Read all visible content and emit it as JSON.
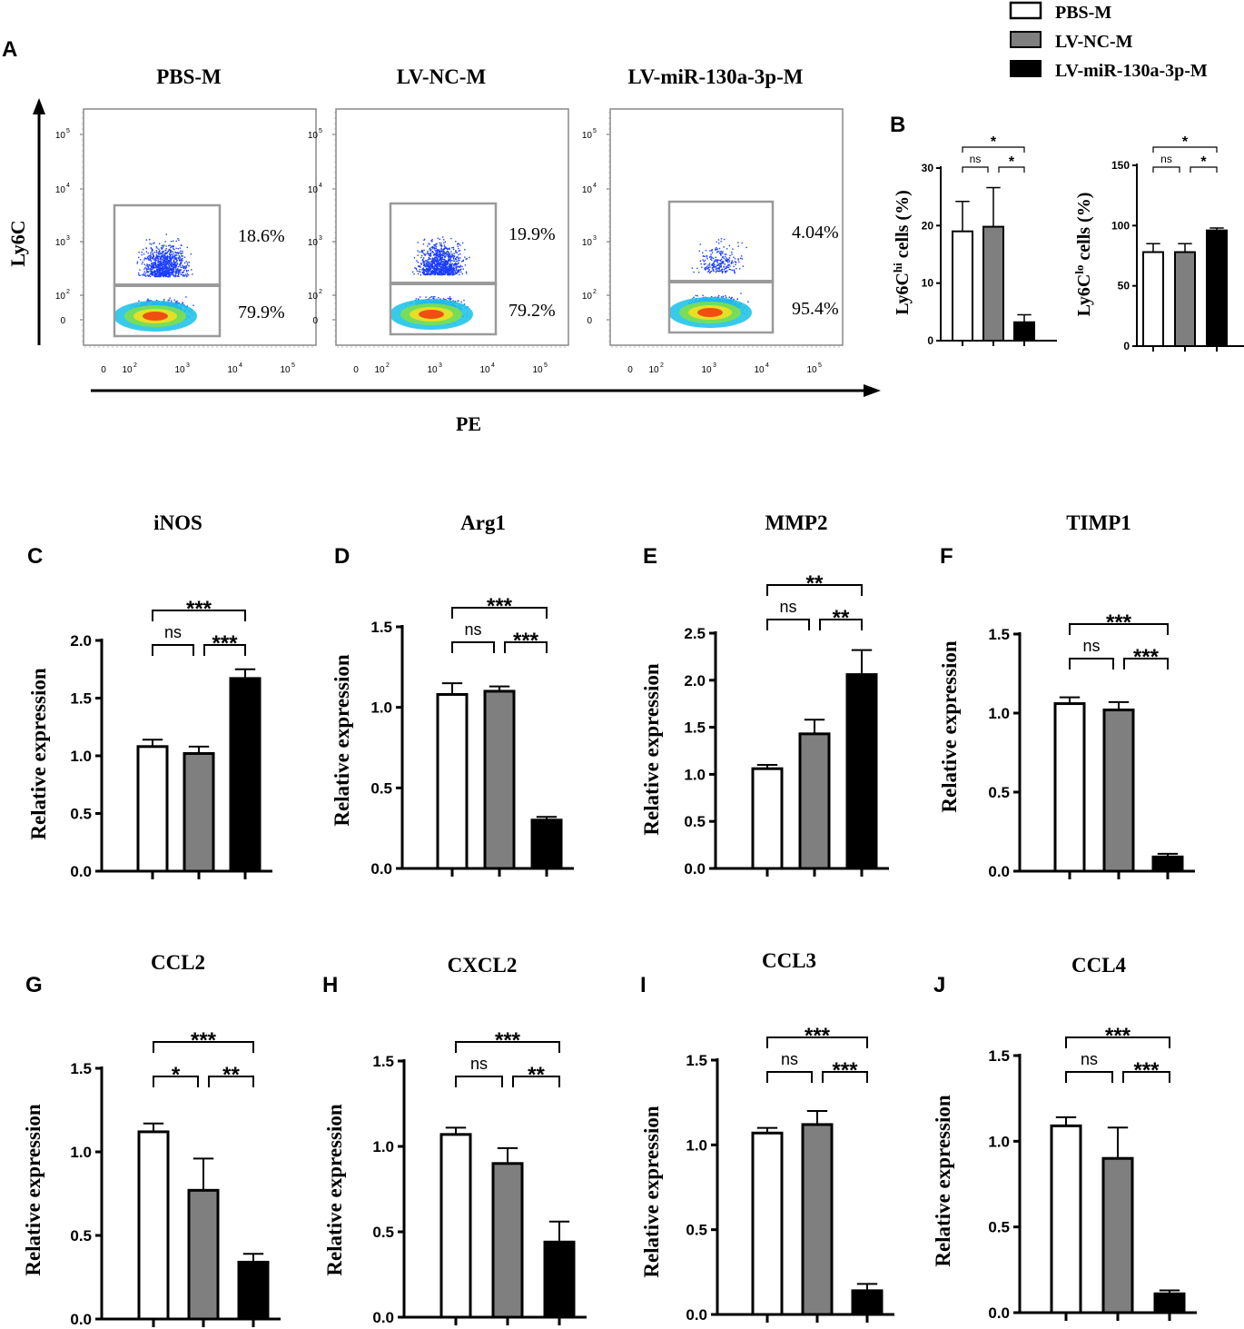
{
  "figure": {
    "legend": [
      {
        "label": "PBS-M",
        "color": "#ffffff"
      },
      {
        "label": "LV-NC-M",
        "color": "#7f7f7f"
      },
      {
        "label": "LV-miR-130a-3p-M",
        "color": "#000000"
      }
    ],
    "panel_a": {
      "letter": "A",
      "y_axis_label": "Ly6C",
      "x_axis_label": "PE",
      "plots": [
        {
          "title": "PBS-M",
          "upper_pct": "18.6%",
          "lower_pct": "79.9%"
        },
        {
          "title": "LV-NC-M",
          "upper_pct": "19.9%",
          "lower_pct": "79.2%"
        },
        {
          "title": "LV-miR-130a-3p-M",
          "upper_pct": "4.04%",
          "lower_pct": "95.4%"
        }
      ],
      "y_ticks": [
        "10",
        "10",
        "10",
        "10",
        "0"
      ],
      "y_tick_exponents": [
        "5",
        "4",
        "3",
        "2",
        ""
      ],
      "x_ticks": [
        "0",
        "10",
        "10",
        "10",
        "10"
      ],
      "x_tick_exponents": [
        "",
        "2",
        "3",
        "4",
        "5"
      ]
    },
    "colors": {
      "white_bar": "#ffffff",
      "gray_bar": "#7f7f7f",
      "black_bar": "#000000",
      "flow_dots": "#1a3cff"
    }
  },
  "chart_data": [
    {
      "panel": "B",
      "letter": "B",
      "type": "bar",
      "title": "",
      "ylabel_main": "Ly6C",
      "ylabel_sup": "hi",
      "ylabel_rest": " cells (%)",
      "categories": [
        "PBS-M",
        "LV-NC-M",
        "LV-miR-130a-3p-M"
      ],
      "values": [
        19.0,
        19.8,
        3.2
      ],
      "errors": [
        5.2,
        6.8,
        1.3
      ],
      "ylim": [
        0,
        30
      ],
      "ticks": [
        0,
        10,
        20,
        30
      ],
      "tick_labels": [
        "0",
        "10",
        "20",
        "30"
      ],
      "sig": [
        {
          "text": "ns",
          "from": 0,
          "to": 1,
          "level": 1
        },
        {
          "text": "*",
          "from": 1,
          "to": 2,
          "level": 1
        },
        {
          "text": "*",
          "from": 0,
          "to": 2,
          "level": 2
        }
      ]
    },
    {
      "panel": "B2",
      "letter": "",
      "type": "bar",
      "title": "",
      "ylabel_main": "Ly6C",
      "ylabel_sup": "lo",
      "ylabel_rest": " cells (%)",
      "categories": [
        "PBS-M",
        "LV-NC-M",
        "LV-miR-130a-3p-M"
      ],
      "values": [
        78,
        78,
        96
      ],
      "errors": [
        7,
        7,
        2
      ],
      "ylim": [
        0,
        150
      ],
      "ticks": [
        0,
        50,
        100,
        150
      ],
      "tick_labels": [
        "0",
        "50",
        "100",
        "150"
      ],
      "sig": [
        {
          "text": "ns",
          "from": 0,
          "to": 1,
          "level": 1
        },
        {
          "text": "*",
          "from": 1,
          "to": 2,
          "level": 1
        },
        {
          "text": "*",
          "from": 0,
          "to": 2,
          "level": 2
        }
      ]
    },
    {
      "panel": "C",
      "letter": "C",
      "type": "bar",
      "title": "iNOS",
      "ylabel_main": "Relative expression",
      "categories": [
        "PBS-M",
        "LV-NC-M",
        "LV-miR-130a-3p-M"
      ],
      "values": [
        1.08,
        1.02,
        1.67
      ],
      "errors": [
        0.06,
        0.06,
        0.08
      ],
      "ylim": [
        0,
        2.0
      ],
      "ticks": [
        0,
        0.5,
        1.0,
        1.5,
        2.0
      ],
      "tick_labels": [
        "0.0",
        "0.5",
        "1.0",
        "1.5",
        "2.0"
      ],
      "sig": [
        {
          "text": "ns",
          "from": 0,
          "to": 1,
          "level": 1
        },
        {
          "text": "***",
          "from": 1,
          "to": 2,
          "level": 1
        },
        {
          "text": "***",
          "from": 0,
          "to": 2,
          "level": 2
        }
      ]
    },
    {
      "panel": "D",
      "letter": "D",
      "type": "bar",
      "title": "Arg1",
      "ylabel_main": "Relative expression",
      "categories": [
        "PBS-M",
        "LV-NC-M",
        "LV-miR-130a-3p-M"
      ],
      "values": [
        1.08,
        1.1,
        0.3
      ],
      "errors": [
        0.07,
        0.03,
        0.02
      ],
      "ylim": [
        0,
        1.5
      ],
      "ticks": [
        0,
        0.5,
        1.0,
        1.5
      ],
      "tick_labels": [
        "0.0",
        "0.5",
        "1.0",
        "1.5"
      ],
      "sig": [
        {
          "text": "ns",
          "from": 0,
          "to": 1,
          "level": 1
        },
        {
          "text": "***",
          "from": 1,
          "to": 2,
          "level": 1
        },
        {
          "text": "***",
          "from": 0,
          "to": 2,
          "level": 2
        }
      ]
    },
    {
      "panel": "E",
      "letter": "E",
      "type": "bar",
      "title": "MMP2",
      "ylabel_main": "Relative expression",
      "categories": [
        "PBS-M",
        "LV-NC-M",
        "LV-miR-130a-3p-M"
      ],
      "values": [
        1.06,
        1.43,
        2.06
      ],
      "errors": [
        0.04,
        0.15,
        0.26
      ],
      "ylim": [
        0,
        2.5
      ],
      "ticks": [
        0,
        0.5,
        1.0,
        1.5,
        2.0,
        2.5
      ],
      "tick_labels": [
        "0.0",
        "0.5",
        "1.0",
        "1.5",
        "2.0",
        "2.5"
      ],
      "sig": [
        {
          "text": "ns",
          "from": 0,
          "to": 1,
          "level": 1
        },
        {
          "text": "**",
          "from": 1,
          "to": 2,
          "level": 1
        },
        {
          "text": "**",
          "from": 0,
          "to": 2,
          "level": 2
        }
      ]
    },
    {
      "panel": "F",
      "letter": "F",
      "type": "bar",
      "title": "TIMP1",
      "ylabel_main": "Relative expression",
      "categories": [
        "PBS-M",
        "LV-NC-M",
        "LV-miR-130a-3p-M"
      ],
      "values": [
        1.06,
        1.02,
        0.09
      ],
      "errors": [
        0.04,
        0.05,
        0.02
      ],
      "ylim": [
        0,
        1.5
      ],
      "ticks": [
        0,
        0.5,
        1.0,
        1.5
      ],
      "tick_labels": [
        "0.0",
        "0.5",
        "1.0",
        "1.5"
      ],
      "sig": [
        {
          "text": "ns",
          "from": 0,
          "to": 1,
          "level": 1
        },
        {
          "text": "***",
          "from": 1,
          "to": 2,
          "level": 1
        },
        {
          "text": "***",
          "from": 0,
          "to": 2,
          "level": 2
        }
      ]
    },
    {
      "panel": "G",
      "letter": "G",
      "type": "bar",
      "title": "CCL2",
      "ylabel_main": "Relative expression",
      "categories": [
        "PBS-M",
        "LV-NC-M",
        "LV-miR-130a-3p-M"
      ],
      "values": [
        1.12,
        0.77,
        0.34
      ],
      "errors": [
        0.05,
        0.19,
        0.05
      ],
      "ylim": [
        0,
        1.5
      ],
      "ticks": [
        0,
        0.5,
        1.0,
        1.5
      ],
      "tick_labels": [
        "0.0",
        "0.5",
        "1.0",
        "1.5"
      ],
      "sig": [
        {
          "text": "*",
          "from": 0,
          "to": 1,
          "level": 1
        },
        {
          "text": "**",
          "from": 1,
          "to": 2,
          "level": 1
        },
        {
          "text": "***",
          "from": 0,
          "to": 2,
          "level": 2
        }
      ]
    },
    {
      "panel": "H",
      "letter": "H",
      "type": "bar",
      "title": "CXCL2",
      "ylabel_main": "Relative expression",
      "categories": [
        "PBS-M",
        "LV-NC-M",
        "LV-miR-130a-3p-M"
      ],
      "values": [
        1.07,
        0.9,
        0.44
      ],
      "errors": [
        0.04,
        0.09,
        0.12
      ],
      "ylim": [
        0,
        1.5
      ],
      "ticks": [
        0,
        0.5,
        1.0,
        1.5
      ],
      "tick_labels": [
        "0.0",
        "0.5",
        "1.0",
        "1.5"
      ],
      "sig": [
        {
          "text": "ns",
          "from": 0,
          "to": 1,
          "level": 1
        },
        {
          "text": "**",
          "from": 1,
          "to": 2,
          "level": 1
        },
        {
          "text": "***",
          "from": 0,
          "to": 2,
          "level": 2
        }
      ]
    },
    {
      "panel": "I",
      "letter": "I",
      "type": "bar",
      "title": "CCL3",
      "ylabel_main": "Relative expression",
      "categories": [
        "PBS-M",
        "LV-NC-M",
        "LV-miR-130a-3p-M"
      ],
      "values": [
        1.07,
        1.12,
        0.14
      ],
      "errors": [
        0.03,
        0.08,
        0.04
      ],
      "ylim": [
        0,
        1.5
      ],
      "ticks": [
        0,
        0.5,
        1.0,
        1.5
      ],
      "tick_labels": [
        "0.0",
        "0.5",
        "1.0",
        "1.5"
      ],
      "sig": [
        {
          "text": "ns",
          "from": 0,
          "to": 1,
          "level": 1
        },
        {
          "text": "***",
          "from": 1,
          "to": 2,
          "level": 1
        },
        {
          "text": "***",
          "from": 0,
          "to": 2,
          "level": 2
        }
      ]
    },
    {
      "panel": "J",
      "letter": "J",
      "type": "bar",
      "title": "CCL4",
      "ylabel_main": "Relative expression",
      "categories": [
        "PBS-M",
        "LV-NC-M",
        "LV-miR-130a-3p-M"
      ],
      "values": [
        1.09,
        0.9,
        0.11
      ],
      "errors": [
        0.05,
        0.18,
        0.02
      ],
      "ylim": [
        0,
        1.5
      ],
      "ticks": [
        0,
        0.5,
        1.0,
        1.5
      ],
      "tick_labels": [
        "0.0",
        "0.5",
        "1.0",
        "1.5"
      ],
      "sig": [
        {
          "text": "ns",
          "from": 0,
          "to": 1,
          "level": 1
        },
        {
          "text": "***",
          "from": 1,
          "to": 2,
          "level": 1
        },
        {
          "text": "***",
          "from": 0,
          "to": 2,
          "level": 2
        }
      ]
    }
  ]
}
